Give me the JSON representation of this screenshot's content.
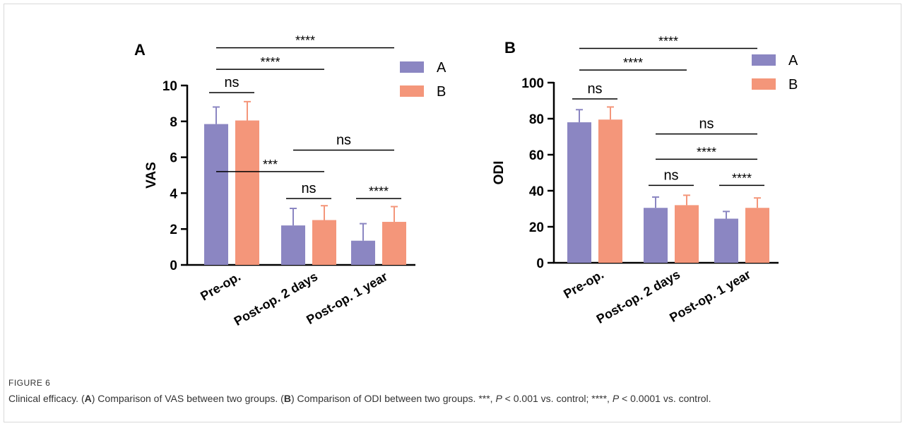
{
  "figure": {
    "label": "FIGURE 6",
    "caption": {
      "title": "Clinical efficacy. (",
      "a_letter": "A",
      "a_text": ") Comparison of VAS between two groups. (",
      "b_letter": "B",
      "b_text": ") Comparison of ODI between two groups. ***, ",
      "p": "P",
      "p1": " < 0.001 vs. control; ****, ",
      "p2": " < 0.0001 vs. control."
    }
  },
  "colors": {
    "A": "#8b86c2",
    "B": "#f4967a"
  },
  "chart_data": [
    {
      "type": "bar",
      "panel_label": "A",
      "ylabel": "VAS",
      "ylim": [
        0,
        10
      ],
      "yticks": [
        0,
        2,
        4,
        6,
        8,
        10
      ],
      "categories": [
        "Pre-op.",
        "Post-op. 2 days",
        "Post-op. 1 year"
      ],
      "series": [
        {
          "name": "A",
          "values": [
            7.85,
            2.2,
            1.35
          ],
          "errors": [
            0.95,
            0.95,
            0.95
          ]
        },
        {
          "name": "B",
          "values": [
            8.05,
            2.5,
            2.4
          ],
          "errors": [
            1.05,
            0.8,
            0.85
          ]
        }
      ],
      "legend": {
        "placement": "top-right"
      },
      "annotations": [
        {
          "text": "ns",
          "type": "within",
          "group": 0,
          "level": 9.6
        },
        {
          "text": "ns",
          "type": "within",
          "group": 1,
          "level": 3.7
        },
        {
          "text": "****",
          "type": "within",
          "group": 2,
          "level": 3.7
        },
        {
          "text": "***",
          "type": "between",
          "from": 0,
          "to": 1,
          "level": 5.2
        },
        {
          "text": "ns",
          "type": "between",
          "from": 1,
          "to": 2,
          "level": 6.4
        },
        {
          "text": "****",
          "type": "between",
          "from": 0,
          "to": 1,
          "level": 10.9
        },
        {
          "text": "****",
          "type": "between",
          "from": 0,
          "to": 2,
          "level": 12.1
        }
      ]
    },
    {
      "type": "bar",
      "panel_label": "B",
      "ylabel": "ODI",
      "ylim": [
        0,
        100
      ],
      "yticks": [
        0,
        20,
        40,
        60,
        80,
        100
      ],
      "categories": [
        "Pre-op.",
        "Post-op. 2 days",
        "Post-op. 1 year"
      ],
      "series": [
        {
          "name": "A",
          "values": [
            78,
            30.5,
            24.5
          ],
          "errors": [
            7,
            6,
            4
          ]
        },
        {
          "name": "B",
          "values": [
            79.5,
            32,
            30.5
          ],
          "errors": [
            7,
            5.5,
            5.5
          ]
        }
      ],
      "legend": {
        "placement": "top-right"
      },
      "annotations": [
        {
          "text": "ns",
          "type": "within",
          "group": 0,
          "level": 91
        },
        {
          "text": "ns",
          "type": "within",
          "group": 1,
          "level": 43
        },
        {
          "text": "****",
          "type": "within",
          "group": 2,
          "level": 43
        },
        {
          "text": "****",
          "type": "between",
          "from": 1,
          "to": 2,
          "level": 57.5
        },
        {
          "text": "ns",
          "type": "between",
          "from": 1,
          "to": 2,
          "level": 71.5
        },
        {
          "text": "****",
          "type": "between",
          "from": 0,
          "to": 1,
          "level": 107
        },
        {
          "text": "****",
          "type": "between",
          "from": 0,
          "to": 2,
          "level": 119
        }
      ]
    }
  ]
}
